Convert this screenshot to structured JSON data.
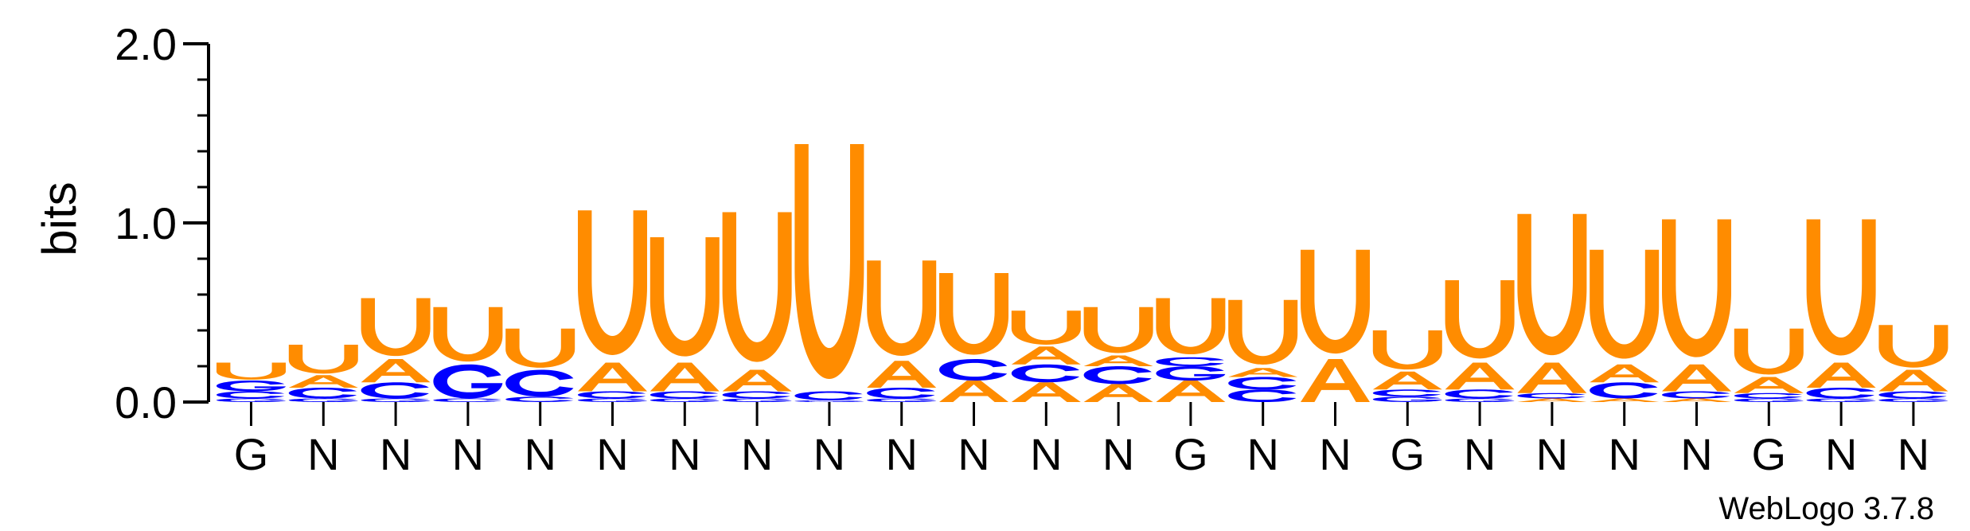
{
  "chart_data": {
    "type": "sequence-logo",
    "ylabel": "bits",
    "ylim": [
      0,
      2.0
    ],
    "yticks": [
      "0.0",
      "1.0",
      "2.0"
    ],
    "positions": [
      "G",
      "N",
      "N",
      "N",
      "N",
      "N",
      "N",
      "N",
      "N",
      "N",
      "N",
      "N",
      "N",
      "G",
      "N",
      "N",
      "G",
      "N",
      "N",
      "N",
      "N",
      "G",
      "N",
      "N"
    ],
    "colors": {
      "U": "#FF8C00",
      "A": "#FF8C00",
      "C": "#0000FF",
      "G": "#0000FF"
    },
    "stacks": [
      [
        [
          "G",
          0.02
        ],
        [
          "C",
          0.04
        ],
        [
          "G",
          0.06
        ],
        [
          "U",
          0.1
        ]
      ],
      [
        [
          "G",
          0.02
        ],
        [
          "C",
          0.06
        ],
        [
          "A",
          0.07
        ],
        [
          "U",
          0.17
        ]
      ],
      [
        [
          "G",
          0.02
        ],
        [
          "C",
          0.09
        ],
        [
          "A",
          0.13
        ],
        [
          "U",
          0.34
        ]
      ],
      [
        [
          "C",
          0.02
        ],
        [
          "G",
          0.19
        ],
        [
          "U",
          0.32
        ]
      ],
      [
        [
          "C",
          0.03
        ],
        [
          "C",
          0.15
        ],
        [
          "U",
          0.23
        ]
      ],
      [
        [
          "G",
          0.02
        ],
        [
          "C",
          0.04
        ],
        [
          "A",
          0.16
        ],
        [
          "U",
          0.85
        ]
      ],
      [
        [
          "G",
          0.02
        ],
        [
          "C",
          0.04
        ],
        [
          "A",
          0.16
        ],
        [
          "U",
          0.7
        ]
      ],
      [
        [
          "G",
          0.02
        ],
        [
          "C",
          0.04
        ],
        [
          "A",
          0.12
        ],
        [
          "U",
          0.88
        ]
      ],
      [
        [
          "G",
          0.01
        ],
        [
          "C",
          0.05
        ],
        [
          "U",
          1.38
        ]
      ],
      [
        [
          "G",
          0.02
        ],
        [
          "C",
          0.06
        ],
        [
          "A",
          0.15
        ],
        [
          "U",
          0.56
        ]
      ],
      [
        [
          "A",
          0.12
        ],
        [
          "C",
          0.12
        ],
        [
          "U",
          0.48
        ]
      ],
      [
        [
          "A",
          0.11
        ],
        [
          "C",
          0.1
        ],
        [
          "A",
          0.1
        ],
        [
          "U",
          0.2
        ]
      ],
      [
        [
          "A",
          0.1
        ],
        [
          "C",
          0.1
        ],
        [
          "A",
          0.06
        ],
        [
          "U",
          0.27
        ]
      ],
      [
        [
          "A",
          0.12
        ],
        [
          "G",
          0.08
        ],
        [
          "C",
          0.05
        ],
        [
          "U",
          0.33
        ]
      ],
      [
        [
          "C",
          0.07
        ],
        [
          "C",
          0.07
        ],
        [
          "A",
          0.05
        ],
        [
          "U",
          0.38
        ]
      ],
      [
        [
          "A",
          0.24
        ],
        [
          "U",
          0.61
        ]
      ],
      [
        [
          "G",
          0.03
        ],
        [
          "C",
          0.04
        ],
        [
          "A",
          0.1
        ],
        [
          "U",
          0.23
        ]
      ],
      [
        [
          "G",
          0.02
        ],
        [
          "C",
          0.05
        ],
        [
          "A",
          0.15
        ],
        [
          "U",
          0.46
        ]
      ],
      [
        [
          "A",
          0.02
        ],
        [
          "C",
          0.03
        ],
        [
          "A",
          0.17
        ],
        [
          "U",
          0.83
        ]
      ],
      [
        [
          "A",
          0.02
        ],
        [
          "C",
          0.09
        ],
        [
          "A",
          0.1
        ],
        [
          "U",
          0.64
        ]
      ],
      [
        [
          "A",
          0.02
        ],
        [
          "C",
          0.04
        ],
        [
          "A",
          0.15
        ],
        [
          "U",
          0.81
        ]
      ],
      [
        [
          "G",
          0.02
        ],
        [
          "C",
          0.03
        ],
        [
          "A",
          0.09
        ],
        [
          "U",
          0.27
        ]
      ],
      [
        [
          "G",
          0.02
        ],
        [
          "C",
          0.06
        ],
        [
          "A",
          0.14
        ],
        [
          "U",
          0.8
        ]
      ],
      [
        [
          "G",
          0.02
        ],
        [
          "C",
          0.04
        ],
        [
          "A",
          0.12
        ],
        [
          "U",
          0.25
        ]
      ]
    ]
  },
  "credit": "WebLogo 3.7.8"
}
